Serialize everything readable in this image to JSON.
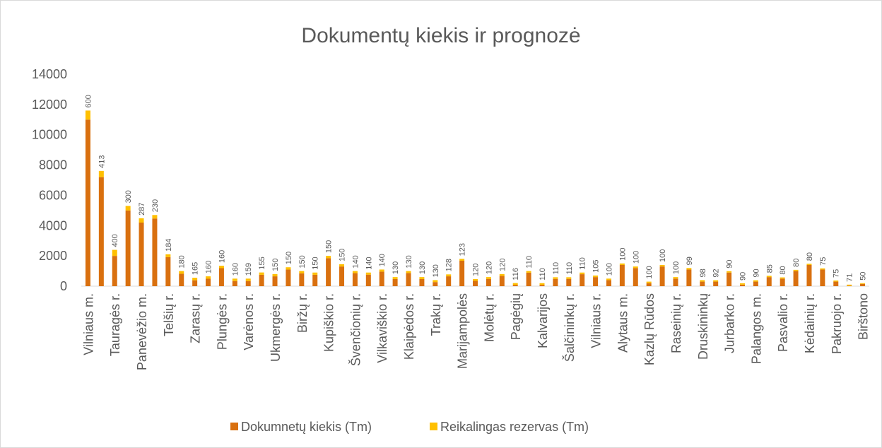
{
  "chart_data": {
    "type": "stacked_bar",
    "title": "Dokumentų kiekis ir prognozė",
    "categories": [
      "Vilniaus m.",
      null,
      "Tauragės r.",
      null,
      "Panevėžio m.",
      null,
      "Telšių r.",
      null,
      "Zarasų r.",
      null,
      "Plungės r.",
      null,
      "Varėnos r.",
      null,
      "Ukmergės r.",
      null,
      "Biržų r.",
      null,
      "Kupiškio r.",
      null,
      "Švenčionių r.",
      null,
      "Vilkaviškio r.",
      null,
      "Klaipėdos r.",
      null,
      "Trakų r.",
      null,
      "Marijampolės",
      null,
      "Molėtų r.",
      null,
      "Pagėgių",
      null,
      "Kalvarijos",
      null,
      "Šalčininkų r.",
      null,
      "Vilniaus r.",
      null,
      "Alytaus m.",
      null,
      "Kazlų Rūdos",
      null,
      "Raseinių r.",
      null,
      "Druskininkų",
      null,
      "Jurbarko r.",
      null,
      "Palangos m.",
      null,
      "Pasvalio r.",
      null,
      "Kėdainių r.",
      null,
      "Pakruojo r.",
      null,
      "Birštono"
    ],
    "series": [
      {
        "name": "Dokumnetų kiekis (Tm)",
        "color": "#d9700f",
        "values": [
          11000,
          7200,
          2000,
          5000,
          4200,
          4470,
          1920,
          820,
          390,
          490,
          1190,
          340,
          340,
          750,
          650,
          1100,
          850,
          750,
          1850,
          1300,
          860,
          760,
          960,
          470,
          870,
          470,
          270,
          650,
          1680,
          350,
          480,
          680,
          90,
          890,
          90,
          480,
          480,
          790,
          600,
          400,
          1400,
          1200,
          200,
          1300,
          500,
          1100,
          300,
          300,
          900,
          100,
          300,
          600,
          500,
          1000,
          1400,
          1100,
          300,
          30,
          150
        ]
      },
      {
        "name": "Reikalingas rezervas (Tm)",
        "color": "#ffc000",
        "labels": true,
        "values": [
          600,
          413,
          400,
          300,
          287,
          230,
          184,
          180,
          165,
          160,
          160,
          160,
          159,
          155,
          150,
          150,
          150,
          150,
          150,
          150,
          140,
          140,
          140,
          130,
          130,
          130,
          130,
          128,
          123,
          120,
          120,
          120,
          116,
          110,
          110,
          110,
          110,
          110,
          105,
          100,
          100,
          100,
          100,
          100,
          100,
          99,
          98,
          92,
          90,
          90,
          90,
          85,
          80,
          80,
          80,
          75,
          75,
          71,
          50
        ]
      }
    ],
    "ylim": [
      0,
      14000
    ],
    "yticks": [
      0,
      2000,
      4000,
      6000,
      8000,
      10000,
      12000,
      14000
    ],
    "grid": false
  }
}
